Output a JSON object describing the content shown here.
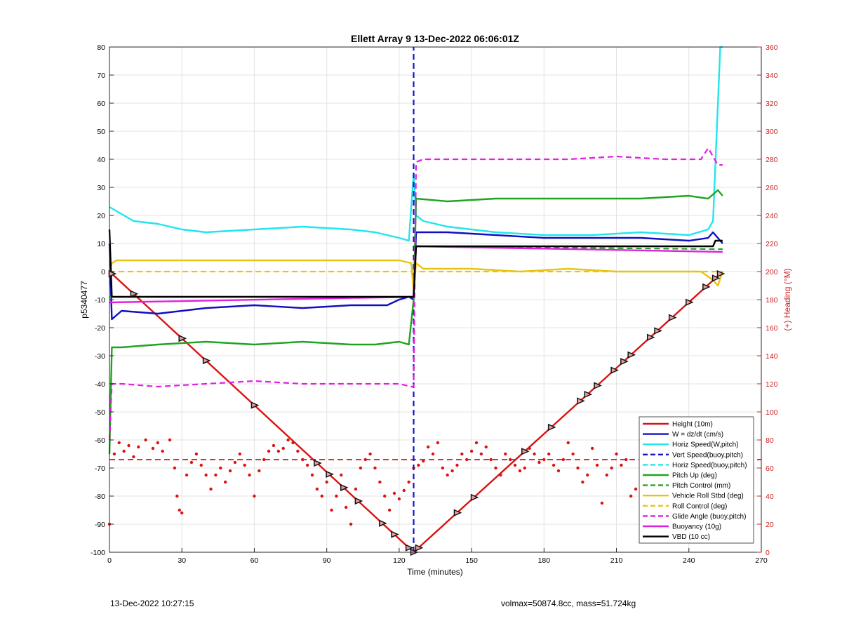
{
  "chart_data": {
    "type": "line",
    "title": "Ellett Array 9 13-Dec-2022 06:06:01Z",
    "xlabel": "Time (minutes)",
    "ylabel": "p5340477",
    "y2label": "(+) Heading (°M)",
    "xlim": [
      0,
      270
    ],
    "ylim": [
      -100,
      80
    ],
    "y2lim": [
      0,
      360
    ],
    "xticks": [
      "0",
      "30",
      "60",
      "90",
      "120",
      "150",
      "180",
      "210",
      "240",
      "270"
    ],
    "yticks": [
      "-100",
      "-90",
      "-80",
      "-70",
      "-60",
      "-50",
      "-40",
      "-30",
      "-20",
      "-10",
      "0",
      "10",
      "20",
      "30",
      "40",
      "50",
      "60",
      "70",
      "80"
    ],
    "y2ticks": [
      "0",
      "20",
      "40",
      "60",
      "80",
      "100",
      "120",
      "140",
      "160",
      "180",
      "200",
      "220",
      "240",
      "260",
      "280",
      "300",
      "320",
      "340",
      "360"
    ],
    "grid": true,
    "legend_placement": "bottom-right",
    "series": [
      {
        "name": "Height (10m)",
        "color": "#dd1111",
        "style": "solid",
        "x": [
          0,
          126,
          254
        ],
        "y": [
          0,
          -100,
          0
        ]
      },
      {
        "name": "W = dz/dt (cm/s)",
        "color": "#1010c0",
        "style": "solid",
        "x": [
          0,
          1,
          5,
          20,
          40,
          60,
          80,
          100,
          115,
          120,
          124,
          126,
          127,
          140,
          160,
          180,
          200,
          220,
          240,
          248,
          250,
          254
        ],
        "y": [
          10,
          -17,
          -14,
          -15,
          -13,
          -12,
          -13,
          -12,
          -12,
          -10,
          -9,
          -10,
          14,
          14,
          13,
          12,
          12,
          12,
          11,
          12,
          14,
          10
        ]
      },
      {
        "name": "Horiz Speed(W,pitch)",
        "color": "#22e5ee",
        "style": "solid",
        "x": [
          0,
          2,
          10,
          20,
          30,
          40,
          60,
          80,
          100,
          110,
          120,
          124,
          126,
          127,
          130,
          140,
          160,
          180,
          200,
          220,
          240,
          248,
          250,
          253,
          254
        ],
        "y": [
          23,
          22,
          18,
          17,
          15,
          14,
          15,
          16,
          15,
          14,
          12,
          11,
          35,
          20,
          18,
          16,
          14,
          13,
          13,
          14,
          13,
          15,
          18,
          80,
          80
        ]
      },
      {
        "name": "Vert Speed(buoy,pitch)",
        "color": "#1515c8",
        "style": "dashed",
        "x": [
          126,
          126
        ],
        "y": [
          -100,
          80
        ]
      },
      {
        "name": "Horiz Speed(buoy,pitch)",
        "color": "#22e5ee",
        "style": "dashed",
        "x": [],
        "y": []
      },
      {
        "name": "Pitch Up (deg)",
        "color": "#1ea51e",
        "style": "solid",
        "x": [
          0,
          1,
          5,
          20,
          40,
          60,
          80,
          100,
          110,
          120,
          124,
          126,
          127,
          140,
          160,
          180,
          200,
          220,
          240,
          248,
          252,
          254
        ],
        "y": [
          -65,
          -27,
          -27,
          -26,
          -25,
          -26,
          -25,
          -26,
          -26,
          -25,
          -26,
          -10,
          26,
          25,
          26,
          26,
          26,
          26,
          27,
          26,
          29,
          27
        ]
      },
      {
        "name": "Pitch Control (mm)",
        "color": "#1ea51e",
        "style": "dashed",
        "x": [
          0,
          125,
          126,
          127,
          250,
          254
        ],
        "y": [
          -9,
          -9,
          -9,
          9,
          8,
          8
        ]
      },
      {
        "name": "Vehicle Roll Stbd (deg)",
        "color": "#e8c414",
        "style": "solid",
        "x": [
          0,
          1,
          3,
          20,
          40,
          60,
          80,
          100,
          120,
          125,
          126,
          127,
          130,
          150,
          170,
          190,
          210,
          230,
          245,
          250,
          252,
          254
        ],
        "y": [
          0,
          3,
          4,
          4,
          4,
          4,
          4,
          4,
          4,
          3,
          -7,
          3,
          1,
          1,
          0,
          1,
          0,
          0,
          0,
          -3,
          -5,
          0
        ]
      },
      {
        "name": "Roll Control (deg)",
        "color": "#e8c414",
        "style": "dashed",
        "x": [
          0,
          125,
          127,
          254
        ],
        "y": [
          0,
          0,
          0,
          0
        ]
      },
      {
        "name": "Glide Angle (buoy,pitch)",
        "color": "#e020e0",
        "style": "dashed",
        "x": [
          0,
          1,
          5,
          20,
          40,
          60,
          80,
          100,
          120,
          125,
          126,
          127,
          130,
          150,
          170,
          190,
          210,
          230,
          245,
          248,
          252,
          254
        ],
        "y": [
          -60,
          -40,
          -40,
          -41,
          -40,
          -39,
          -40,
          -40,
          -40,
          -41,
          -41,
          39,
          40,
          40,
          40,
          40,
          41,
          40,
          40,
          44,
          38,
          38
        ]
      },
      {
        "name": "Buoyancy (10g)",
        "color": "#e020e0",
        "style": "solid",
        "x": [
          0,
          126,
          127,
          254
        ],
        "y": [
          -11,
          -9,
          9,
          7
        ]
      },
      {
        "name": "VBD (10 cc)",
        "color": "#000000",
        "style": "solid",
        "x": [
          0,
          1,
          2,
          125,
          126,
          127,
          250,
          251,
          254
        ],
        "y": [
          15,
          -9,
          -9,
          -9,
          -9,
          9,
          9,
          11,
          11
        ]
      }
    ],
    "heading": {
      "name": "Heading (°M)",
      "color": "#dd1111",
      "reference_line": {
        "y": 66,
        "style": "dashed"
      },
      "x": [
        0,
        2,
        4,
        6,
        8,
        10,
        12,
        15,
        18,
        20,
        22,
        25,
        27,
        28,
        29,
        30,
        32,
        34,
        36,
        38,
        40,
        42,
        44,
        46,
        48,
        50,
        52,
        54,
        56,
        58,
        60,
        62,
        64,
        66,
        68,
        70,
        72,
        74,
        76,
        78,
        80,
        82,
        84,
        86,
        88,
        90,
        92,
        94,
        96,
        98,
        100,
        102,
        104,
        106,
        108,
        110,
        112,
        114,
        116,
        118,
        120,
        122,
        124,
        126,
        128,
        130,
        132,
        134,
        136,
        138,
        140,
        142,
        144,
        146,
        148,
        150,
        152,
        154,
        156,
        158,
        160,
        162,
        164,
        166,
        168,
        170,
        172,
        174,
        176,
        178,
        180,
        182,
        184,
        186,
        188,
        190,
        192,
        194,
        196,
        198,
        200,
        202,
        204,
        206,
        208,
        210,
        212,
        214,
        216,
        218,
        220,
        222,
        224,
        226,
        228,
        230,
        232,
        234,
        236,
        238,
        240,
        242,
        244,
        246,
        248,
        250,
        252,
        254
      ],
      "y": [
        20,
        70,
        78,
        72,
        76,
        68,
        75,
        80,
        74,
        78,
        72,
        80,
        60,
        40,
        30,
        28,
        55,
        64,
        70,
        62,
        55,
        45,
        55,
        60,
        50,
        58,
        64,
        70,
        62,
        55,
        40,
        58,
        66,
        72,
        76,
        72,
        74,
        80,
        78,
        72,
        66,
        62,
        55,
        45,
        40,
        50,
        30,
        40,
        55,
        32,
        20,
        45,
        60,
        66,
        70,
        60,
        50,
        40,
        30,
        42,
        38,
        44,
        50,
        60,
        62,
        65,
        75,
        70,
        78,
        60,
        55,
        58,
        62,
        70,
        66,
        72,
        78,
        70,
        75,
        66,
        60,
        55,
        70,
        66,
        62,
        58,
        60,
        74,
        70,
        64,
        66,
        70,
        62,
        58,
        66,
        78,
        70,
        60,
        50,
        55,
        74,
        62,
        35,
        55,
        60,
        70,
        62,
        66,
        40,
        45,
        60,
        70,
        60,
        75,
        80,
        66,
        50,
        45,
        58,
        70,
        60,
        45,
        55,
        60,
        58,
        40,
        70,
        90
      ]
    },
    "annotations": [
      "13-Dec-2022 10:27:15",
      "volmax=50874.8cc, mass=51.724kg"
    ]
  }
}
